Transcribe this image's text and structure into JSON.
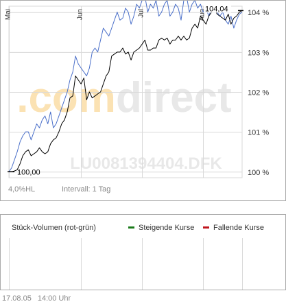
{
  "colors": {
    "fund_line": "#000000",
    "benchmark_line": "#4a6fc9",
    "grid": "#d9d9d9",
    "watermark": "#e8e8e8",
    "watermark_accent": "#fbe2b3",
    "rising": "#1a7a1a",
    "falling": "#c0141c"
  },
  "watermark": {
    "brand_prefix": ".com",
    "brand_suffix": "direct",
    "isin": "LU0081394404.DFK"
  },
  "info": {
    "hl_range": "4,0%HL",
    "interval": "Intervall: 1 Tag"
  },
  "volume": {
    "title": "Stück-Volumen (rot-grün)",
    "legend_rising": "Steigende Kurse",
    "legend_falling": "Fallende Kurse"
  },
  "footer": {
    "date": "17.08.05",
    "time": "14:00 Uhr"
  },
  "chart_data": {
    "type": "line",
    "y_ticks": [
      "100 %",
      "101 %",
      "102 %",
      "103 %",
      "104 %"
    ],
    "y_tick_values": [
      100,
      101,
      102,
      103,
      104
    ],
    "ylim": [
      99.85,
      104.15
    ],
    "x_month_labels": [
      "Mai",
      "Jun",
      "Jul",
      "Aug"
    ],
    "x_month_positions": [
      0,
      26,
      48,
      70
    ],
    "x_count": 85,
    "start_label": "100,00",
    "end_label": "104,04",
    "series": [
      {
        "color_key": "fund_line",
        "values": [
          100.0,
          100.0,
          100.02,
          100.05,
          100.2,
          100.4,
          100.5,
          100.55,
          100.4,
          100.45,
          100.5,
          100.6,
          100.5,
          100.45,
          100.5,
          100.7,
          100.8,
          100.85,
          101.0,
          101.2,
          101.3,
          101.5,
          101.85,
          101.9,
          102.4,
          102.3,
          102.2,
          102.35,
          101.8,
          102.0,
          101.85,
          101.9,
          101.95,
          102.0,
          102.2,
          102.4,
          102.5,
          102.9,
          102.95,
          103.0,
          103.0,
          103.1,
          102.95,
          103.0,
          102.8,
          103.0,
          103.05,
          103.1,
          103.2,
          103.3,
          103.05,
          103.05,
          103.1,
          103.1,
          103.3,
          103.35,
          103.3,
          103.35,
          103.2,
          103.3,
          103.3,
          103.4,
          103.3,
          103.4,
          103.3,
          103.35,
          103.6,
          103.7,
          103.6,
          103.9,
          103.8,
          103.7,
          103.9,
          104.0,
          104.1,
          103.95,
          103.9,
          103.85,
          103.8,
          103.95,
          103.7,
          103.85,
          103.9,
          104.0,
          104.04
        ]
      },
      {
        "color_key": "benchmark_line",
        "values": [
          100.0,
          100.1,
          100.3,
          100.5,
          100.75,
          100.9,
          101.0,
          101.0,
          100.8,
          101.0,
          101.2,
          101.1,
          101.3,
          101.4,
          101.2,
          101.5,
          101.1,
          101.2,
          101.4,
          101.6,
          101.8,
          102.0,
          102.3,
          102.5,
          102.9,
          102.7,
          102.6,
          102.5,
          102.4,
          102.6,
          103.0,
          103.1,
          103.0,
          103.3,
          103.6,
          103.5,
          103.4,
          103.6,
          103.8,
          104.0,
          103.8,
          103.85,
          104.1,
          104.0,
          103.7,
          103.9,
          104.2,
          104.1,
          104.3,
          104.4,
          104.0,
          104.2,
          104.1,
          104.3,
          103.9,
          104.0,
          104.2,
          104.3,
          103.9,
          104.0,
          104.2,
          104.1,
          103.8,
          104.3,
          104.4,
          104.0,
          104.2,
          104.3,
          104.1,
          104.2,
          104.0,
          104.1,
          103.9,
          104.1,
          104.05,
          104.0,
          103.9,
          104.0,
          103.8,
          103.7,
          103.9,
          103.6,
          103.8,
          103.95,
          104.0
        ]
      }
    ]
  }
}
